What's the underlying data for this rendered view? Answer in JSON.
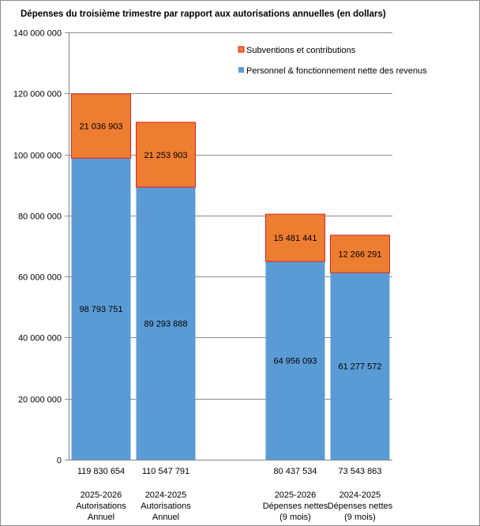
{
  "chart_data": {
    "type": "bar",
    "stacked": true,
    "title": "Dépenses du troisième trimestre par rapport aux autorisations annuelles (en dollars)",
    "xlabel": "",
    "ylabel": "",
    "ylim": [
      0,
      140000000
    ],
    "yticks": [
      0,
      20000000,
      40000000,
      60000000,
      80000000,
      100000000,
      120000000,
      140000000
    ],
    "ytick_labels": [
      "0",
      "20 000 000",
      "40 000 000",
      "60 000 000",
      "80 000 000",
      "100 000 000",
      "120 000 000",
      "140 000 000"
    ],
    "grid": true,
    "legend_position": "top-right",
    "categories": [
      [
        "2025-2026",
        "Autorisations",
        "Annuel"
      ],
      [
        "2024-2025",
        "Autorisations",
        "Annuel"
      ],
      [],
      [
        "2025-2026",
        "Dépenses nettes",
        "(9 mois)"
      ],
      [
        "2024-2025",
        "Dépenses nettes",
        "(9 mois)"
      ]
    ],
    "totals": [
      "119 830 654",
      "110 547 791",
      "",
      "80 437 534",
      "73 543 863"
    ],
    "series": [
      {
        "name": "Personnel & fonctionnement nette des revenus",
        "color": "#5b9bd5",
        "values": [
          98793751,
          89293888,
          null,
          64956093,
          61277572
        ],
        "labels": [
          "98 793 751",
          "89 293 888",
          "",
          "64 956 093",
          "61 277 572"
        ]
      },
      {
        "name": "Subventions et contributions",
        "color": "#ed7d31",
        "border": "#e02020",
        "values": [
          21036903,
          21253903,
          null,
          15481441,
          12266291
        ],
        "labels": [
          "21 036 903",
          "21 253 903",
          "",
          "15 481 441",
          "12 266 291"
        ]
      }
    ]
  }
}
